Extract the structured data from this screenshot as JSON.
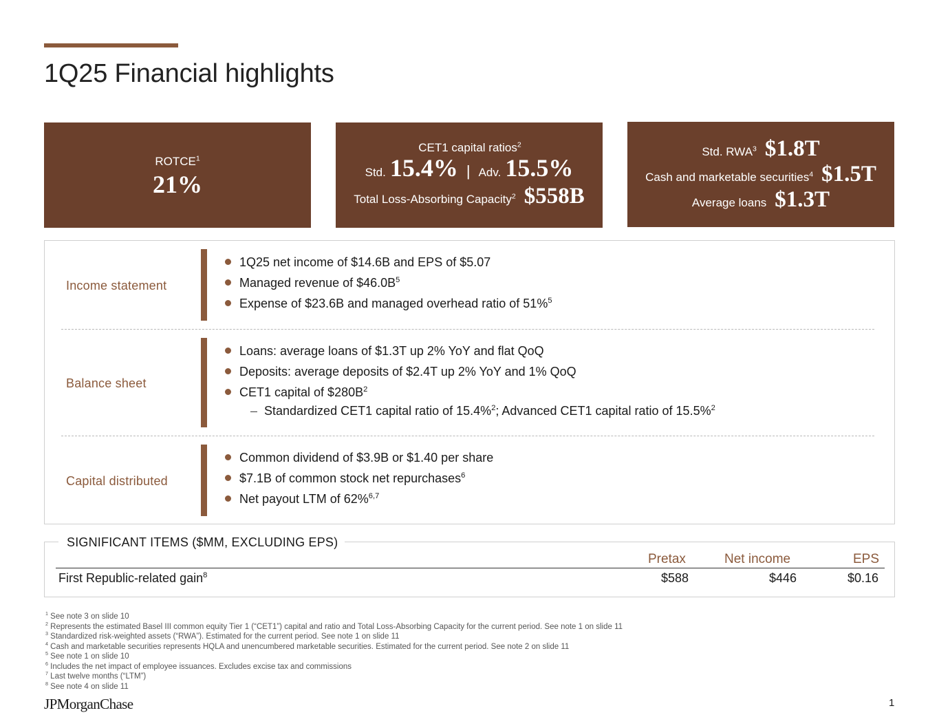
{
  "title": "1Q25 Financial highlights",
  "kpis": {
    "rotce_label": "ROTCE",
    "rotce_sup": "1",
    "rotce_value": "21%",
    "cet1_label": "CET1 capital ratios",
    "cet1_sup": "2",
    "std_label": "Std.",
    "std_value": "15.4%",
    "separator": "|",
    "adv_label": "Adv.",
    "adv_value": "15.5%",
    "tlac_label": "Total Loss-Absorbing Capacity",
    "tlac_sup": "2",
    "tlac_value": "$558B",
    "rwa_label": "Std. RWA",
    "rwa_sup": "3",
    "rwa_value": "$1.8T",
    "cash_label": "Cash and marketable securities",
    "cash_sup": "4",
    "cash_value": "$1.5T",
    "loans_label": "Average loans",
    "loans_value": "$1.3T"
  },
  "sections": {
    "income": {
      "title": "Income statement",
      "b1": "1Q25 net income of $14.6B and EPS of $5.07",
      "b2": "Managed revenue of $46.0B",
      "b2_sup": "5",
      "b3": "Expense of $23.6B and managed overhead ratio of 51%",
      "b3_sup": "5"
    },
    "balance": {
      "title": "Balance sheet",
      "b1": "Loans: average loans of $1.3T up 2% YoY and flat QoQ",
      "b2": "Deposits: average deposits of $2.4T up 2% YoY and 1% QoQ",
      "b3": "CET1 capital of $280B",
      "b3_sup": "2",
      "sub_dash": "–",
      "sub_a": "Standardized CET1 capital ratio of 15.4%",
      "sub_a_sup": "2",
      "sub_b": "; Advanced CET1 capital ratio of 15.5%",
      "sub_b_sup": "2"
    },
    "capital": {
      "title": "Capital distributed",
      "b1": "Common dividend of $3.9B or $1.40 per share",
      "b2": "$7.1B of common stock net repurchases",
      "b2_sup": "6",
      "b3": "Net payout LTM of 62%",
      "b3_sup": "6,7"
    }
  },
  "significant": {
    "title": "SIGNIFICANT ITEMS ($MM, EXCLUDING EPS)",
    "headers": {
      "pretax": "Pretax",
      "net_income": "Net income",
      "eps": "EPS"
    },
    "row": {
      "label": "First Republic-related gain",
      "label_sup": "8",
      "pretax": "$588",
      "net_income": "$446",
      "eps": "$0.16"
    }
  },
  "footnotes": [
    {
      "num": "1",
      "text": "See note 3 on slide 10"
    },
    {
      "num": "2",
      "text": "Represents the estimated Basel III common equity Tier 1 (“CET1”) capital and ratio and Total Loss-Absorbing Capacity for the current period. See note 1 on slide 11"
    },
    {
      "num": "3",
      "text": "Standardized risk-weighted assets (“RWA”). Estimated for the current period. See note 1 on slide 11"
    },
    {
      "num": "4",
      "text": "Cash and marketable securities represents HQLA and unencumbered marketable securities. Estimated for the current period. See note 2 on slide 11"
    },
    {
      "num": "5",
      "text": "See note 1 on slide 10"
    },
    {
      "num": "6",
      "text": "Includes the net impact of employee issuances. Excludes excise tax and commissions"
    },
    {
      "num": "7",
      "text": "Last twelve months (“LTM”)"
    },
    {
      "num": "8",
      "text": "See note 4 on slide 11"
    }
  ],
  "logo": "JPMorganChase",
  "page_number": "1"
}
